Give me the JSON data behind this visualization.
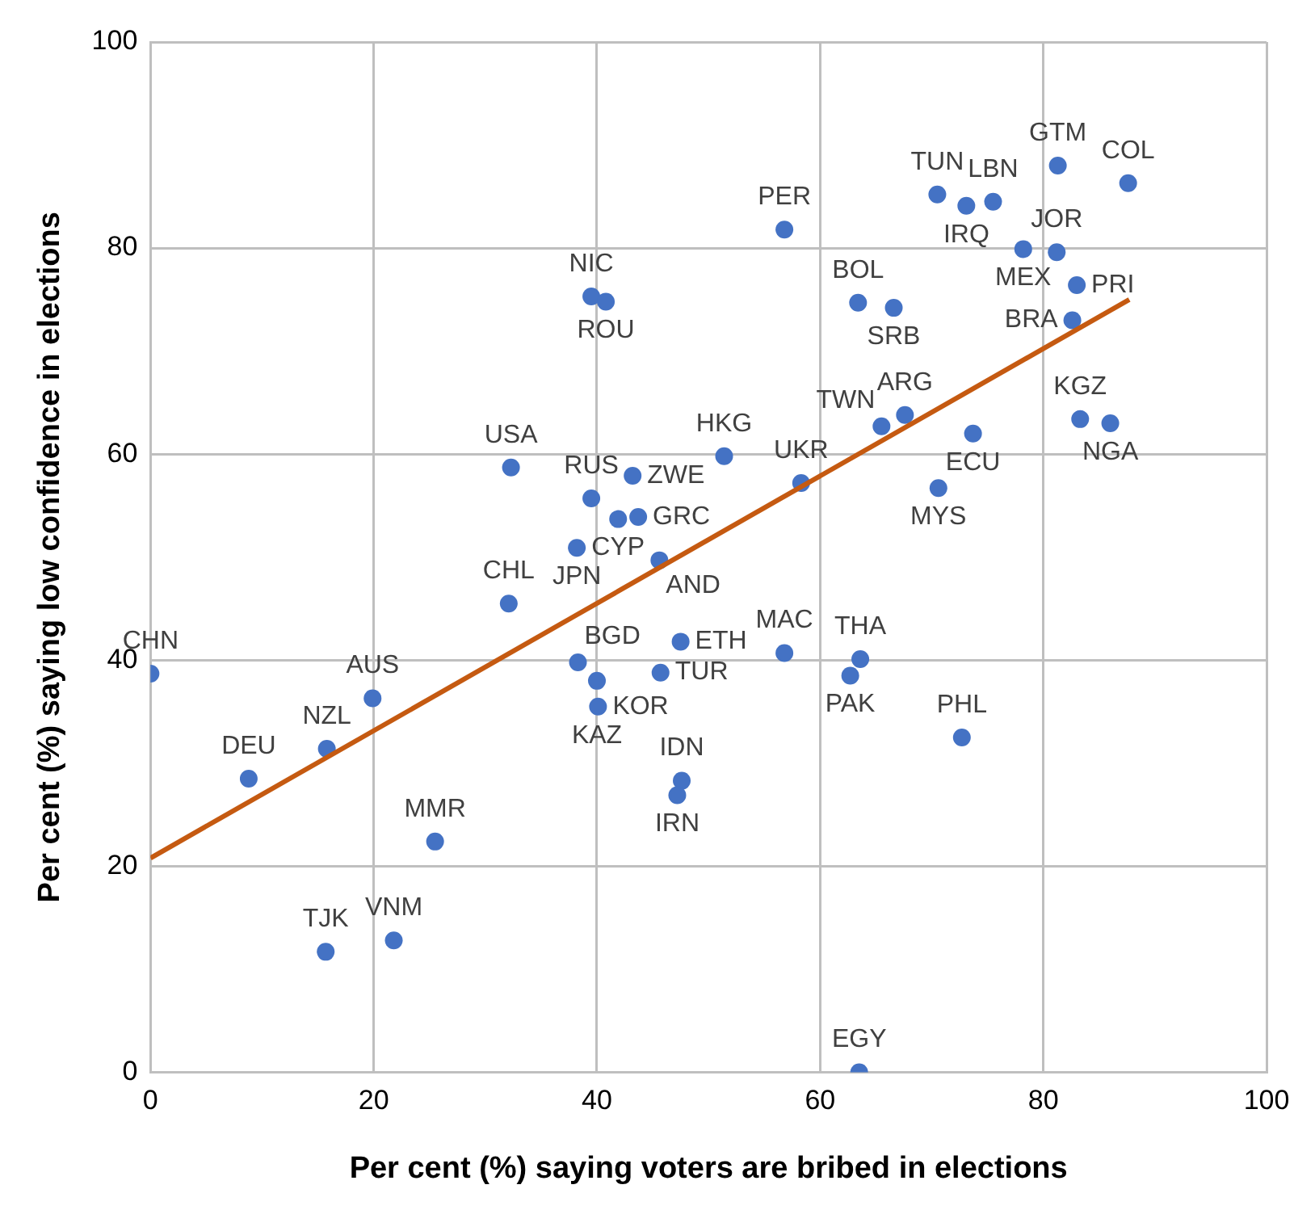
{
  "chart_data": {
    "type": "scatter",
    "xlabel": "Per cent (%) saying voters are bribed in elections",
    "ylabel": "Per cent (%) saying low confidence in elections",
    "xlim": [
      0,
      100
    ],
    "xticks": [
      0,
      20,
      40,
      60,
      80,
      100
    ],
    "ylim": [
      0,
      100
    ],
    "yticks": [
      0,
      20,
      40,
      60,
      80,
      100
    ],
    "grid": true,
    "legend": false,
    "marker": "circle",
    "series": [
      {
        "color": "#4472c4",
        "x": [
          0,
          8.8,
          15.8,
          19.9,
          15.7,
          21.8,
          25.5,
          32.1,
          32.3,
          38.2,
          39.5,
          39.5,
          40.8,
          43.2,
          43.7,
          41.9,
          45.6,
          38.3,
          40.0,
          40.1,
          45.7,
          47.5,
          47.6,
          47.2,
          51.4,
          58.3,
          56.8,
          56.8,
          63.6,
          62.7,
          72.7,
          63.5,
          70.5,
          73.1,
          75.5,
          81.3,
          87.6,
          78.2,
          81.2,
          83.0,
          82.6,
          83.3,
          86.0,
          63.4,
          66.6,
          65.5,
          67.6,
          73.7,
          70.6
        ],
        "values": [
          38.7,
          28.5,
          31.4,
          36.3,
          11.7,
          12.8,
          22.4,
          45.5,
          58.7,
          50.9,
          55.7,
          75.3,
          74.8,
          57.9,
          53.9,
          53.7,
          49.7,
          39.8,
          38.0,
          35.5,
          38.8,
          41.8,
          28.3,
          26.9,
          59.8,
          57.2,
          81.8,
          40.7,
          40.1,
          38.5,
          32.5,
          0,
          85.2,
          84.1,
          84.5,
          88.0,
          86.3,
          79.9,
          79.6,
          76.4,
          73.0,
          63.4,
          63.0,
          74.7,
          74.2,
          62.7,
          63.8,
          62.0,
          56.7
        ]
      },
      {
        "type": "line",
        "color": "#c55a11",
        "marker": "none",
        "line_style": "solid",
        "x": [
          0,
          87.7
        ],
        "values": [
          20.8,
          75.0
        ]
      }
    ],
    "annotations": [
      {
        "text": "CHN",
        "x": 0,
        "y": 38.7
      },
      {
        "text": "DEU",
        "x": 8.8,
        "y": 28.5
      },
      {
        "text": "NZL",
        "x": 15.8,
        "y": 31.4
      },
      {
        "text": "AUS",
        "x": 19.9,
        "y": 36.3
      },
      {
        "text": "TJK",
        "x": 15.7,
        "y": 11.7
      },
      {
        "text": "VNM",
        "x": 21.8,
        "y": 12.8
      },
      {
        "text": "MMR",
        "x": 25.5,
        "y": 22.4
      },
      {
        "text": "CHL",
        "x": 32.1,
        "y": 45.5
      },
      {
        "text": "USA",
        "x": 32.3,
        "y": 58.7
      },
      {
        "text": "JPN",
        "x": 38.2,
        "y": 50.9
      },
      {
        "text": "RUS",
        "x": 39.5,
        "y": 55.7
      },
      {
        "text": "NIC",
        "x": 39.5,
        "y": 75.3
      },
      {
        "text": "ROU",
        "x": 40.8,
        "y": 74.8
      },
      {
        "text": "ZWE",
        "x": 43.2,
        "y": 57.9
      },
      {
        "text": "GRC",
        "x": 43.7,
        "y": 53.9
      },
      {
        "text": "CYP",
        "x": 41.9,
        "y": 53.7
      },
      {
        "text": "AND",
        "x": 45.6,
        "y": 49.7
      },
      {
        "text": "BGD",
        "x": 38.3,
        "y": 39.8
      },
      {
        "text": "KAZ",
        "x": 40.0,
        "y": 38.0
      },
      {
        "text": "KOR",
        "x": 40.1,
        "y": 35.5
      },
      {
        "text": "TUR",
        "x": 45.7,
        "y": 38.8
      },
      {
        "text": "ETH",
        "x": 47.5,
        "y": 41.8
      },
      {
        "text": "IDN",
        "x": 47.6,
        "y": 28.3
      },
      {
        "text": "IRN",
        "x": 47.2,
        "y": 26.9
      },
      {
        "text": "HKG",
        "x": 51.4,
        "y": 59.8
      },
      {
        "text": "UKR",
        "x": 58.3,
        "y": 57.2
      },
      {
        "text": "PER",
        "x": 56.8,
        "y": 81.8
      },
      {
        "text": "MAC",
        "x": 56.8,
        "y": 40.7
      },
      {
        "text": "THA",
        "x": 63.6,
        "y": 40.1
      },
      {
        "text": "PAK",
        "x": 62.7,
        "y": 38.5
      },
      {
        "text": "PHL",
        "x": 72.7,
        "y": 32.5
      },
      {
        "text": "EGY",
        "x": 63.5,
        "y": 0
      },
      {
        "text": "TUN",
        "x": 70.5,
        "y": 85.2
      },
      {
        "text": "IRQ",
        "x": 73.1,
        "y": 84.1
      },
      {
        "text": "LBN",
        "x": 75.5,
        "y": 84.5
      },
      {
        "text": "GTM",
        "x": 81.3,
        "y": 88.0
      },
      {
        "text": "COL",
        "x": 87.6,
        "y": 86.3
      },
      {
        "text": "MEX",
        "x": 78.2,
        "y": 79.9
      },
      {
        "text": "JOR",
        "x": 81.2,
        "y": 79.6
      },
      {
        "text": "PRI",
        "x": 83.0,
        "y": 76.4
      },
      {
        "text": "BRA",
        "x": 82.6,
        "y": 73.0
      },
      {
        "text": "KGZ",
        "x": 83.3,
        "y": 63.4
      },
      {
        "text": "NGA",
        "x": 86.0,
        "y": 63.0
      },
      {
        "text": "BOL",
        "x": 63.4,
        "y": 74.7
      },
      {
        "text": "SRB",
        "x": 66.6,
        "y": 74.2
      },
      {
        "text": "TWN",
        "x": 65.5,
        "y": 62.7
      },
      {
        "text": "ARG",
        "x": 67.6,
        "y": 63.8
      },
      {
        "text": "ECU",
        "x": 73.7,
        "y": 62.0
      },
      {
        "text": "MYS",
        "x": 70.6,
        "y": 56.7
      }
    ]
  }
}
